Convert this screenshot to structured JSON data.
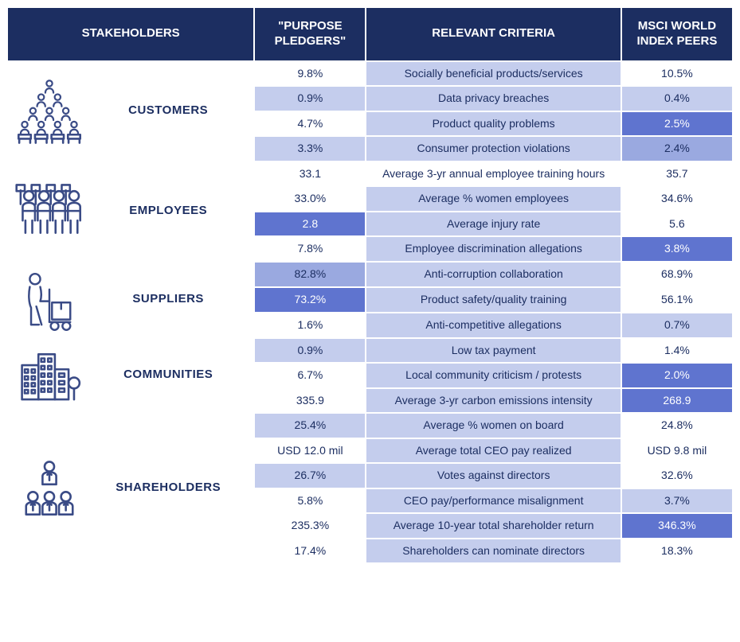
{
  "colors": {
    "header_bg": "#1c2e61",
    "header_fg": "#ffffff",
    "text": "#1c2e61",
    "white": "#ffffff",
    "light": "#c4cded",
    "mid": "#9aa9e0",
    "dark": "#5f74cf",
    "icon_stroke": "#3a4b86"
  },
  "headers": {
    "stakeholders": "STAKEHOLDERS",
    "pledgers": "\"PURPOSE PLEDGERS\"",
    "criteria": "RELEVANT CRITERIA",
    "peers": "MSCI WORLD INDEX PEERS"
  },
  "groups": [
    {
      "key": "customers",
      "label": "CUSTOMERS",
      "icon": "customers-icon",
      "rows": [
        {
          "pp": "9.8%",
          "pp_bg": "white",
          "crit": "Socially beneficial products/services",
          "crit_bg": "light",
          "peer": "10.5%",
          "peer_bg": "white"
        },
        {
          "pp": "0.9%",
          "pp_bg": "light",
          "crit": "Data privacy breaches",
          "crit_bg": "light",
          "peer": "0.4%",
          "peer_bg": "light"
        },
        {
          "pp": "4.7%",
          "pp_bg": "white",
          "crit": "Product quality problems",
          "crit_bg": "light",
          "peer": "2.5%",
          "peer_bg": "dark"
        },
        {
          "pp": "3.3%",
          "pp_bg": "light",
          "crit": "Consumer protection violations",
          "crit_bg": "light",
          "peer": "2.4%",
          "peer_bg": "mid"
        }
      ]
    },
    {
      "key": "employees",
      "label": "EMPLOYEES",
      "icon": "employees-icon",
      "rows": [
        {
          "pp": "33.1",
          "pp_bg": "white",
          "crit": "Average 3-yr annual employee training hours",
          "crit_bg": "white",
          "peer": "35.7",
          "peer_bg": "white"
        },
        {
          "pp": "33.0%",
          "pp_bg": "white",
          "crit": "Average % women employees",
          "crit_bg": "light",
          "peer": "34.6%",
          "peer_bg": "white"
        },
        {
          "pp": "2.8",
          "pp_bg": "dark",
          "crit": "Average injury rate",
          "crit_bg": "light",
          "peer": "5.6",
          "peer_bg": "white"
        },
        {
          "pp": "7.8%",
          "pp_bg": "white",
          "crit": "Employee discrimination allegations",
          "crit_bg": "light",
          "peer": "3.8%",
          "peer_bg": "dark"
        }
      ]
    },
    {
      "key": "suppliers",
      "label": "SUPPLIERS",
      "icon": "suppliers-icon",
      "rows": [
        {
          "pp": "82.8%",
          "pp_bg": "mid",
          "crit": "Anti-corruption collaboration",
          "crit_bg": "light",
          "peer": "68.9%",
          "peer_bg": "white"
        },
        {
          "pp": "73.2%",
          "pp_bg": "dark",
          "crit": "Product safety/quality training",
          "crit_bg": "light",
          "peer": "56.1%",
          "peer_bg": "white"
        },
        {
          "pp": "1.6%",
          "pp_bg": "white",
          "crit": "Anti-competitive allegations",
          "crit_bg": "light",
          "peer": "0.7%",
          "peer_bg": "light"
        }
      ]
    },
    {
      "key": "communities",
      "label": "COMMUNITIES",
      "icon": "communities-icon",
      "rows": [
        {
          "pp": "0.9%",
          "pp_bg": "light",
          "crit": "Low tax payment",
          "crit_bg": "light",
          "peer": "1.4%",
          "peer_bg": "white"
        },
        {
          "pp": "6.7%",
          "pp_bg": "white",
          "crit": "Local community criticism / protests",
          "crit_bg": "light",
          "peer": "2.0%",
          "peer_bg": "dark"
        },
        {
          "pp": "335.9",
          "pp_bg": "white",
          "crit": "Average 3-yr carbon emissions intensity",
          "crit_bg": "light",
          "peer": "268.9",
          "peer_bg": "dark"
        }
      ]
    },
    {
      "key": "shareholders",
      "label": "SHAREHOLDERS",
      "icon": "shareholders-icon",
      "rows": [
        {
          "pp": "25.4%",
          "pp_bg": "light",
          "crit": "Average % women on board",
          "crit_bg": "light",
          "peer": "24.8%",
          "peer_bg": "white"
        },
        {
          "pp": "USD 12.0 mil",
          "pp_bg": "white",
          "crit": "Average total CEO pay realized",
          "crit_bg": "light",
          "peer": "USD 9.8 mil",
          "peer_bg": "white"
        },
        {
          "pp": "26.7%",
          "pp_bg": "light",
          "crit": "Votes against directors",
          "crit_bg": "light",
          "peer": "32.6%",
          "peer_bg": "white"
        },
        {
          "pp": "5.8%",
          "pp_bg": "white",
          "crit": "CEO pay/performance misalignment",
          "crit_bg": "light",
          "peer": "3.7%",
          "peer_bg": "light"
        },
        {
          "pp": "235.3%",
          "pp_bg": "white",
          "crit": "Average 10-year total shareholder return",
          "crit_bg": "light",
          "peer": "346.3%",
          "peer_bg": "dark"
        },
        {
          "pp": "17.4%",
          "pp_bg": "white",
          "crit": "Shareholders can nominate directors",
          "crit_bg": "light",
          "peer": "18.3%",
          "peer_bg": "white"
        }
      ]
    }
  ]
}
